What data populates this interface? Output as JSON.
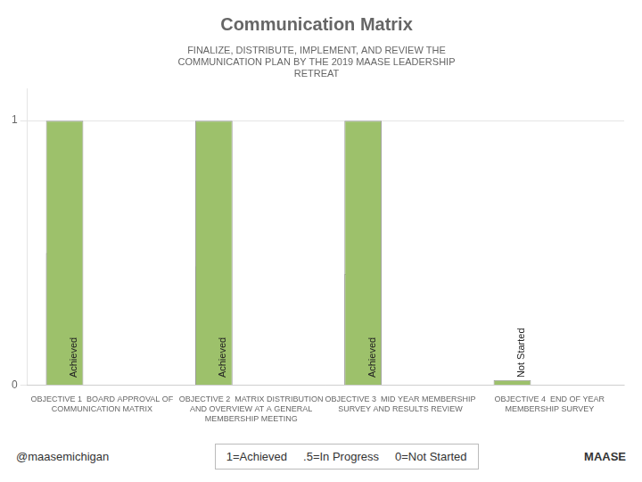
{
  "chart_data": {
    "type": "bar",
    "title": "Communication Matrix",
    "subtitle": "FINALIZE, DISTRIBUTE, IMPLEMENT, AND REVIEW THE\nCOMMUNICATION PLAN BY THE 2019 MAASE LEADERSHIP\nRETREAT",
    "categories": [
      "OBJECTIVE 1  BOARD APPROVAL OF\nCOMMUNICATION MATRIX",
      "OBJECTIVE 2  MATRIX DISTRIBUTION\nAND OVERVIEW AT A GENERAL\nMEMBERSHIP MEETING",
      "OBJECTIVE 3  MID YEAR MEMBERSHIP\nSURVEY AND RESULTS REVIEW",
      "OBJECTIVE 4  END OF YEAR\nMEMBERSHIP SURVEY"
    ],
    "series": [
      {
        "color": "#9dc16b",
        "values": [
          1.0,
          1.0,
          1.0,
          0.02
        ]
      },
      {
        "color": "#ffffff",
        "values": [
          0.5,
          0.45,
          0.42,
          0.0
        ]
      }
    ],
    "bar_labels": [
      "Achieved",
      "Achieved",
      "Achieved",
      "Not Started"
    ],
    "annotations": [
      "1=Achieved",
      ".5=In Progress",
      "0=Not Started"
    ],
    "footer": [
      "@maasemichigan",
      "MAASE"
    ],
    "ylim": [
      0,
      1.12
    ],
    "yticks": [
      0,
      1
    ],
    "grid": true
  }
}
